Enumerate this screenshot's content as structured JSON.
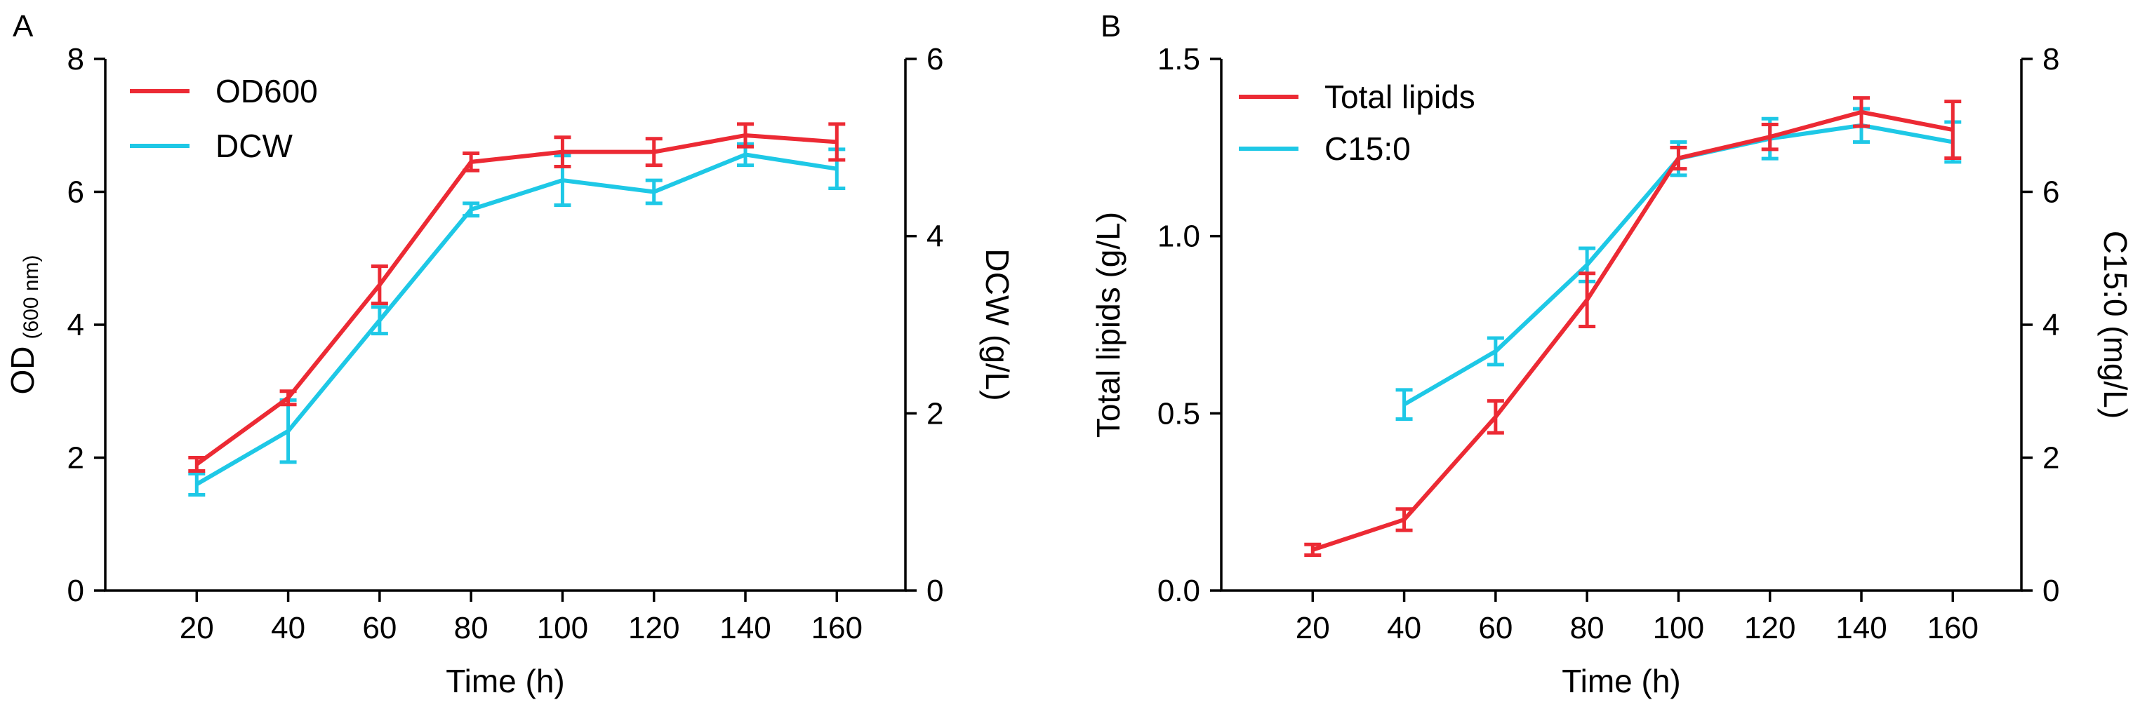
{
  "figure": {
    "panels": [
      "A",
      "B"
    ]
  },
  "colors": {
    "red": "#ec2a34",
    "cyan": "#1ec8e6",
    "axis": "#000000"
  },
  "chart_data": [
    {
      "type": "line",
      "panel_label": "A",
      "xlabel": "Time (h)",
      "ylabel_main": "OD",
      "ylabel_sub": "(600 nm)",
      "y2label": "DCW (g/L)",
      "x": [
        20,
        40,
        60,
        80,
        100,
        120,
        140,
        160
      ],
      "xlim": [
        0,
        175
      ],
      "xticks": [
        "20",
        "40",
        "60",
        "80",
        "100",
        "120",
        "140",
        "160"
      ],
      "ylim": [
        0,
        8
      ],
      "yticks": [
        "0",
        "2",
        "4",
        "6",
        "8"
      ],
      "y2lim": [
        0,
        6
      ],
      "y2ticks": [
        "0",
        "2",
        "4",
        "6"
      ],
      "legend_position": "top-left",
      "series": [
        {
          "name": "OD600",
          "axis": "left",
          "color": "red",
          "values": [
            1.9,
            2.9,
            4.6,
            6.45,
            6.6,
            6.6,
            6.85,
            6.75
          ],
          "errors": [
            0.1,
            0.1,
            0.28,
            0.13,
            0.22,
            0.2,
            0.17,
            0.27
          ]
        },
        {
          "name": "DCW",
          "axis": "right",
          "color": "cyan",
          "values": [
            1.2,
            1.8,
            3.05,
            4.3,
            4.63,
            4.5,
            4.92,
            4.76
          ],
          "errors": [
            0.12,
            0.35,
            0.15,
            0.07,
            0.28,
            0.13,
            0.12,
            0.22
          ]
        }
      ]
    },
    {
      "type": "line",
      "panel_label": "B",
      "xlabel": "Time (h)",
      "ylabel_main": "Total lipids (g/L)",
      "ylabel_sub": "",
      "y2label": "C15:0 (mg/L)",
      "x": [
        20,
        40,
        60,
        80,
        100,
        120,
        140,
        160
      ],
      "xlim": [
        0,
        175
      ],
      "xticks": [
        "20",
        "40",
        "60",
        "80",
        "100",
        "120",
        "140",
        "160"
      ],
      "ylim": [
        0,
        1.5
      ],
      "yticks": [
        "0.0",
        "0.5",
        "1.0",
        "1.5"
      ],
      "y2lim": [
        0,
        8
      ],
      "y2ticks": [
        "0",
        "2",
        "4",
        "6",
        "8"
      ],
      "legend_position": "top-left",
      "series": [
        {
          "name": "Total lipids",
          "axis": "left",
          "color": "red",
          "x": [
            20,
            40,
            60,
            80,
            100,
            120,
            140,
            160
          ],
          "values": [
            0.115,
            0.2,
            0.49,
            0.82,
            1.22,
            1.28,
            1.35,
            1.3
          ],
          "errors": [
            0.015,
            0.03,
            0.045,
            0.075,
            0.03,
            0.035,
            0.04,
            0.08
          ]
        },
        {
          "name": "C15:0",
          "axis": "right",
          "color": "cyan",
          "x": [
            40,
            60,
            80,
            100,
            120,
            140,
            160
          ],
          "values": [
            2.8,
            3.6,
            4.9,
            6.5,
            6.8,
            7.0,
            6.75
          ],
          "errors": [
            0.22,
            0.2,
            0.25,
            0.25,
            0.3,
            0.25,
            0.3
          ]
        }
      ]
    }
  ]
}
